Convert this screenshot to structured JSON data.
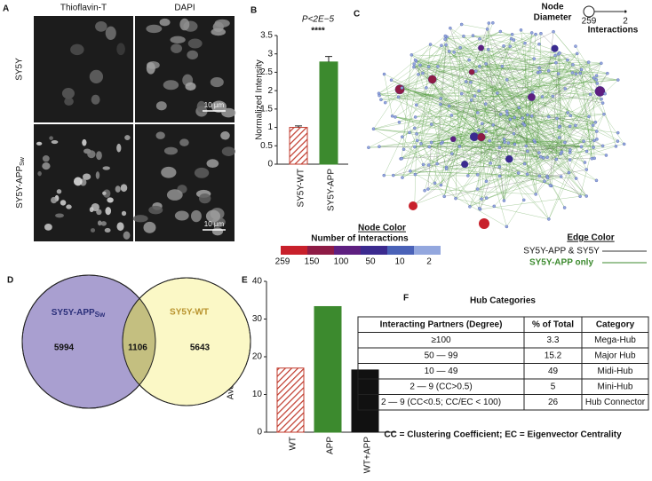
{
  "panel_labels": [
    "A",
    "B",
    "C",
    "D",
    "E",
    "F"
  ],
  "microscopy": {
    "columns": [
      "Thioflavin-T",
      "DAPI"
    ],
    "rows": [
      {
        "text": "SY5Y"
      },
      {
        "text": "SY5Y-APP",
        "sub": "Sw"
      }
    ],
    "scale_bar": "10 µm"
  },
  "chart_data": [
    {
      "type": "bar",
      "ylabel": "Normalized Intensity",
      "categories": [
        "SY5Y-WT",
        "SY5Y-APP"
      ],
      "values": [
        1.0,
        2.78
      ],
      "errors": [
        0.04,
        0.15
      ],
      "colors": [
        "#c0392b",
        "#3c8a2e"
      ],
      "styles": [
        "hatched",
        "solid"
      ],
      "ylim": [
        0,
        3.5
      ],
      "yticks": [
        0,
        0.5,
        1,
        1.5,
        2,
        2.5,
        3,
        3.5
      ],
      "annotations": [
        "P<2E−5",
        "****"
      ]
    },
    {
      "type": "bar",
      "ylabel": "Average Spectral Hits",
      "categories": [
        "WT",
        "APP",
        "WT+APP"
      ],
      "values": [
        17,
        33.3,
        16.5
      ],
      "colors": [
        "#c0392b",
        "#3c8a2e",
        "#111111"
      ],
      "styles": [
        "hatched",
        "solid",
        "solid"
      ],
      "ylim": [
        0,
        40
      ],
      "yticks": [
        0,
        10,
        20,
        30,
        40
      ]
    }
  ],
  "network": {
    "size_legend": {
      "line1": "Node",
      "line2": "Diameter",
      "max": "259",
      "min": "2",
      "caption": "Interactions"
    },
    "color_legend": {
      "title": "Node Color",
      "caption": "Number of Interactions",
      "labels": [
        "259",
        "150",
        "100",
        "50",
        "10",
        "2"
      ],
      "colors": [
        "#c8202b",
        "#8e1b45",
        "#5e1f80",
        "#3b2a8f",
        "#4a62b8",
        "#93a7de"
      ]
    },
    "edge_legend": {
      "title": "Edge Color",
      "items": [
        {
          "name": "SY5Y-APP & SY5Y",
          "color": "#333333"
        },
        {
          "name": "SY5Y-APP only",
          "color": "#3c8a2e"
        }
      ]
    }
  },
  "venn": {
    "sets": [
      {
        "name": "SY5Y-APP",
        "sub": "Sw",
        "count": 5994,
        "color": "#a99fd0",
        "label_color": "#2b2f7a"
      },
      {
        "name": "SY5Y-WT",
        "count": 5643,
        "color": "#fbf8c6",
        "label_color": "#b8922c"
      }
    ],
    "overlap": 1106,
    "overlap_color": "#c4bf80"
  },
  "table": {
    "title": "Hub Categories",
    "header": [
      "Interacting Partners (Degree)",
      "% of Total",
      "Category"
    ],
    "rows": [
      [
        "≥100",
        "3.3",
        "Mega-Hub"
      ],
      [
        "50 — 99",
        "15.2",
        "Major Hub"
      ],
      [
        "10 — 49",
        "49",
        "Midi-Hub"
      ],
      [
        "2 — 9 (CC>0.5)",
        "5",
        "Mini-Hub"
      ],
      [
        "2 — 9 (CC<0.5; CC/EC < 100)",
        "26",
        "Hub Connector"
      ]
    ],
    "footnote": "CC = Clustering Coefficient; EC = Eigenvector Centrality"
  }
}
